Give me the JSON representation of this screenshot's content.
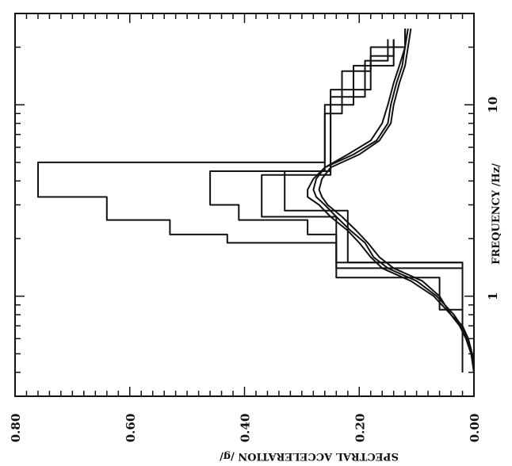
{
  "chart_data": {
    "type": "line",
    "orientation": "rotated-90-clockwise",
    "x_axis": {
      "label": "FREQUENCY /Hz/",
      "scale": "log",
      "range": [
        0.3,
        30
      ],
      "tick_labels": [
        "1",
        "10"
      ]
    },
    "y_axis": {
      "label": "SPECTRAL ACCELERATION /g/",
      "scale": "linear",
      "range": [
        0.0,
        0.8
      ],
      "tick_values": [
        0.0,
        0.2,
        0.4,
        0.6,
        0.8
      ],
      "tick_labels": [
        "0.00",
        "0.20",
        "0.40",
        "0.60",
        "0.80"
      ]
    },
    "grid": false,
    "legend": "none",
    "series": [
      {
        "style": "envelope-step",
        "x": [
          0.4,
          0.85,
          0.85,
          1.25,
          1.25,
          1.9,
          1.9,
          2.1,
          2.1,
          2.5,
          2.5,
          3.3,
          3.3,
          5.0,
          5.0,
          9.0,
          9.0,
          15,
          15,
          20,
          20,
          25
        ],
        "y": [
          0.02,
          0.02,
          0.06,
          0.06,
          0.24,
          0.24,
          0.43,
          0.43,
          0.53,
          0.53,
          0.64,
          0.64,
          0.76,
          0.76,
          0.26,
          0.26,
          0.23,
          0.23,
          0.18,
          0.18,
          0.12,
          0.12
        ]
      },
      {
        "style": "step",
        "x": [
          0.4,
          1.4,
          1.4,
          2.1,
          2.1,
          2.5,
          2.5,
          3.0,
          3.0,
          4.5,
          4.5,
          10,
          10,
          16,
          16,
          22
        ],
        "y": [
          0.02,
          0.02,
          0.24,
          0.24,
          0.29,
          0.29,
          0.41,
          0.41,
          0.46,
          0.46,
          0.26,
          0.26,
          0.21,
          0.21,
          0.14,
          0.14
        ]
      },
      {
        "style": "step",
        "x": [
          0.4,
          1.5,
          1.5,
          2.6,
          2.6,
          4.3,
          4.3,
          11,
          11,
          17,
          17,
          22
        ],
        "y": [
          0.02,
          0.02,
          0.24,
          0.24,
          0.37,
          0.37,
          0.25,
          0.25,
          0.19,
          0.19,
          0.15,
          0.15
        ]
      },
      {
        "style": "step",
        "x": [
          0.4,
          1.5,
          1.5,
          2.8,
          2.8,
          4.5,
          4.5,
          12,
          12,
          18,
          18,
          22
        ],
        "y": [
          0.02,
          0.02,
          0.22,
          0.22,
          0.33,
          0.33,
          0.25,
          0.25,
          0.18,
          0.18,
          0.14,
          0.14
        ]
      },
      {
        "style": "smooth",
        "x": [
          0.4,
          0.5,
          0.6,
          0.7,
          0.8,
          1.0,
          1.2,
          1.4,
          1.6,
          1.9,
          2.2,
          2.6,
          3.0,
          3.3,
          3.6,
          4.1,
          4.7,
          5.5,
          6.5,
          8.0,
          10,
          13,
          16,
          20,
          25
        ],
        "y": [
          0.0,
          0.003,
          0.01,
          0.02,
          0.04,
          0.07,
          0.11,
          0.16,
          0.18,
          0.2,
          0.22,
          0.25,
          0.27,
          0.29,
          0.29,
          0.28,
          0.26,
          0.22,
          0.18,
          0.16,
          0.15,
          0.14,
          0.13,
          0.12,
          0.12
        ]
      },
      {
        "style": "smooth",
        "x": [
          0.4,
          0.5,
          0.6,
          0.7,
          0.8,
          1.0,
          1.2,
          1.4,
          1.6,
          1.9,
          2.2,
          2.6,
          3.0,
          3.3,
          3.6,
          4.1,
          4.7,
          5.5,
          6.5,
          8.0,
          10,
          13,
          16,
          20,
          25
        ],
        "y": [
          0.0,
          0.004,
          0.012,
          0.022,
          0.035,
          0.065,
          0.1,
          0.15,
          0.175,
          0.19,
          0.215,
          0.24,
          0.26,
          0.275,
          0.28,
          0.275,
          0.26,
          0.21,
          0.17,
          0.15,
          0.145,
          0.135,
          0.125,
          0.12,
          0.115
        ]
      },
      {
        "style": "smooth",
        "x": [
          0.4,
          0.5,
          0.6,
          0.7,
          0.8,
          1.0,
          1.2,
          1.4,
          1.6,
          1.9,
          2.2,
          2.6,
          3.0,
          3.3,
          3.6,
          4.1,
          4.7,
          5.5,
          6.5,
          8.0,
          10,
          13,
          16,
          20,
          25
        ],
        "y": [
          0.0,
          0.005,
          0.014,
          0.025,
          0.04,
          0.06,
          0.09,
          0.14,
          0.165,
          0.185,
          0.205,
          0.23,
          0.255,
          0.265,
          0.27,
          0.265,
          0.25,
          0.2,
          0.165,
          0.145,
          0.14,
          0.13,
          0.12,
          0.115,
          0.11
        ]
      }
    ]
  }
}
